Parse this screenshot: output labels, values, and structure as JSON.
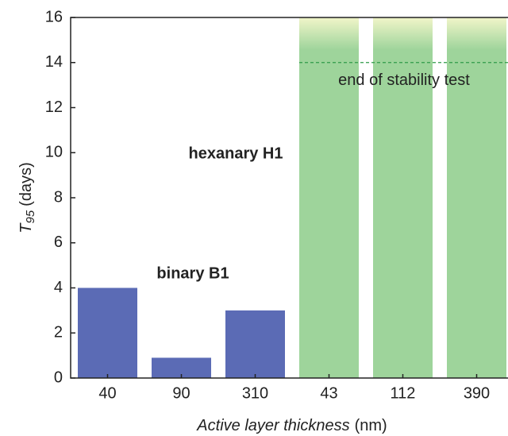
{
  "chart_data": {
    "type": "bar",
    "categories": [
      "40",
      "90",
      "310",
      "43",
      "112",
      "390"
    ],
    "series": [
      {
        "name": "binary B1",
        "color": "#5b6bb5",
        "values": [
          4,
          0.9,
          3,
          null,
          null,
          null
        ]
      },
      {
        "name": "hexanary H1",
        "color": "#9ed49b",
        "values": [
          null,
          null,
          null,
          16,
          16,
          16
        ]
      }
    ],
    "ylim": [
      0,
      16
    ],
    "yticks": [
      0,
      2,
      4,
      6,
      8,
      10,
      12,
      14,
      16
    ],
    "y_label": {
      "symbol": "T",
      "subscript": "95",
      "unit": "(days)"
    },
    "x_label": {
      "name": "Active layer thickness",
      "unit": "(nm)"
    },
    "annotation": {
      "text": "end of stability test",
      "value": 14,
      "color": "#2e9a48"
    },
    "grid": false
  }
}
